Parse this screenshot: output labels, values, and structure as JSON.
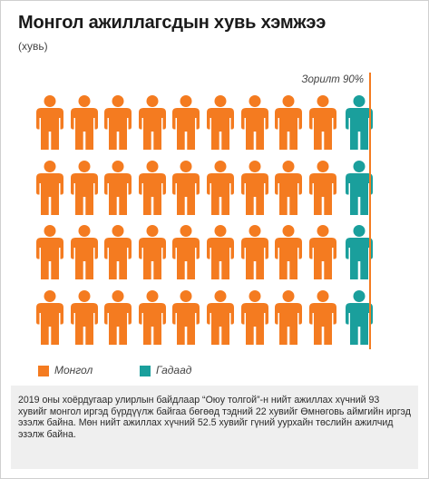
{
  "header": {
    "title": "Монгол ажиллагсдын хувь хэмжээ",
    "subtitle": "(хувь)"
  },
  "colors": {
    "mongol": "#f47b20",
    "foreign": "#1a9f9c",
    "target_line": "#f47b20"
  },
  "chart_data": {
    "type": "pictogram",
    "rows": 4,
    "columns": 10,
    "icon": "person-icon",
    "series": [
      {
        "name": "Монгол",
        "icons_per_row": 9
      },
      {
        "name": "Гадаад",
        "icons_per_row": 1
      }
    ],
    "target": {
      "label": "Зорилт 90%",
      "value": 90
    },
    "legend_position": "bottom-left"
  },
  "legend": [
    {
      "label": "Монгол",
      "color": "#f47b20"
    },
    {
      "label": "Гадаад",
      "color": "#1a9f9c"
    }
  ],
  "note": {
    "text": "2019 оны хоёрдугаар улирлын байдлаар “Оюу толгой”-н нийт ажиллах хүчний 93 хувийг монгол иргэд бүрдүүлж байгаа бөгөөд тэдний 22 хувийг Өмнөговь аймгийн иргэд эзэлж байна. Мөн нийт ажиллах хүчний 52.5 хувийг гүний уурхайн төслийн ажилчид эзэлж байна."
  }
}
